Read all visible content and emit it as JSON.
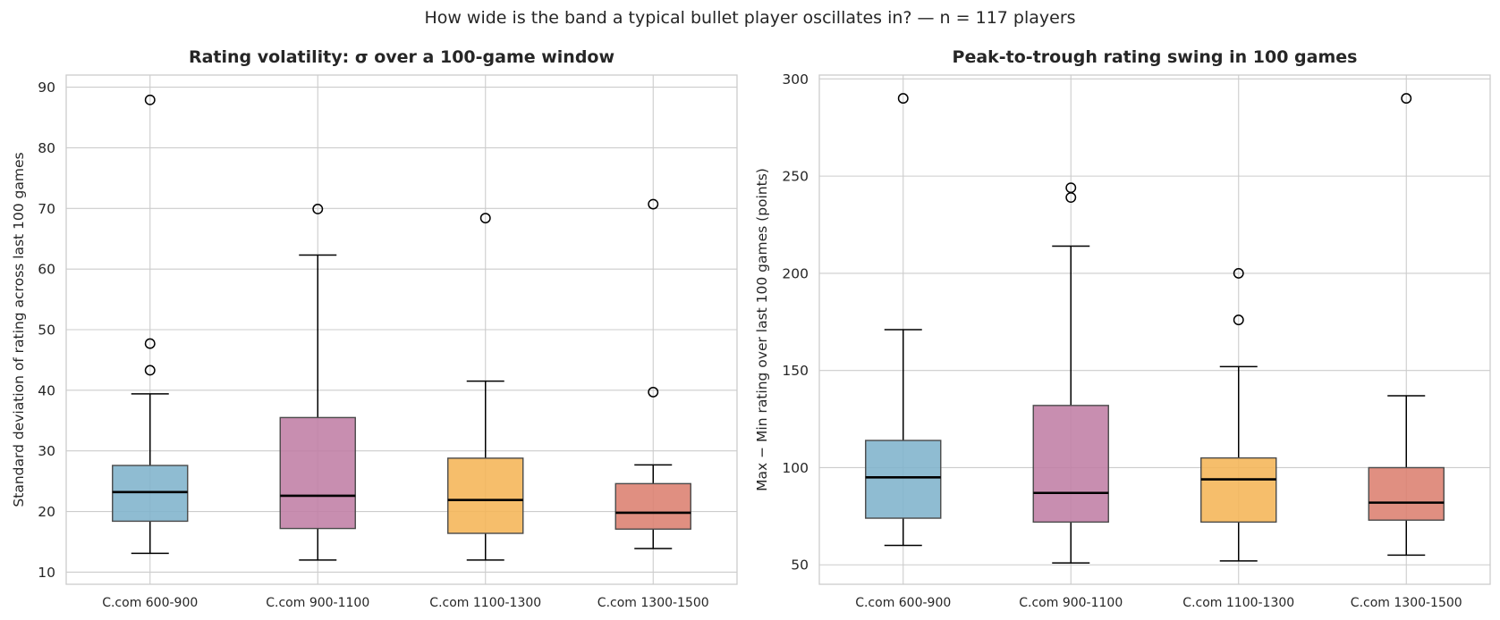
{
  "suptitle": "How wide is the band a typical bullet player oscillates in?  — n = 117 players",
  "colors": {
    "boxes": [
      "#7fb3cc",
      "#c07ea5",
      "#f5b556",
      "#dc8070"
    ],
    "grid": "#cccccc",
    "axes_edge": "#cccccc",
    "median": "#000000",
    "whisker": "#000000",
    "box_edge": "#4a4a4a"
  },
  "chart_data": [
    {
      "type": "box",
      "title": "Rating volatility: σ over a 100-game window",
      "ylabel": "Standard deviation of rating across last 100 games",
      "xlabel": "",
      "categories": [
        "C.com 600-900",
        "C.com 900-1100",
        "C.com 1100-1300",
        "C.com 1300-1500"
      ],
      "ylim": [
        8,
        92
      ],
      "yticks": [
        10,
        20,
        30,
        40,
        50,
        60,
        70,
        80,
        90
      ],
      "grid": true,
      "boxes": [
        {
          "whisker_low": 13.1,
          "q1": 18.4,
          "median": 23.2,
          "q3": 27.6,
          "whisker_high": 39.4,
          "outliers": [
            87.9,
            47.7,
            43.3
          ]
        },
        {
          "whisker_low": 12.0,
          "q1": 17.2,
          "median": 22.6,
          "q3": 35.5,
          "whisker_high": 62.3,
          "outliers": [
            69.9
          ]
        },
        {
          "whisker_low": 12.0,
          "q1": 16.4,
          "median": 21.9,
          "q3": 28.8,
          "whisker_high": 41.5,
          "outliers": [
            68.4
          ]
        },
        {
          "whisker_low": 13.9,
          "q1": 17.1,
          "median": 19.8,
          "q3": 24.6,
          "whisker_high": 27.7,
          "outliers": [
            70.7,
            39.7
          ]
        }
      ]
    },
    {
      "type": "box",
      "title": "Peak-to-trough rating swing in 100 games",
      "ylabel": "Max − Min rating over last 100 games (points)",
      "xlabel": "",
      "categories": [
        "C.com 600-900",
        "C.com 900-1100",
        "C.com 1100-1300",
        "C.com 1300-1500"
      ],
      "ylim": [
        40,
        302
      ],
      "yticks": [
        50,
        100,
        150,
        200,
        250,
        300
      ],
      "grid": true,
      "boxes": [
        {
          "whisker_low": 60,
          "q1": 74,
          "median": 95,
          "q3": 114,
          "whisker_high": 171,
          "outliers": [
            290
          ]
        },
        {
          "whisker_low": 51,
          "q1": 72,
          "median": 87,
          "q3": 132,
          "whisker_high": 214,
          "outliers": [
            244,
            239
          ]
        },
        {
          "whisker_low": 52,
          "q1": 72,
          "median": 94,
          "q3": 105,
          "whisker_high": 152,
          "outliers": [
            200,
            176
          ]
        },
        {
          "whisker_low": 55,
          "q1": 73,
          "median": 82,
          "q3": 100,
          "whisker_high": 137,
          "outliers": [
            290
          ]
        }
      ]
    }
  ]
}
